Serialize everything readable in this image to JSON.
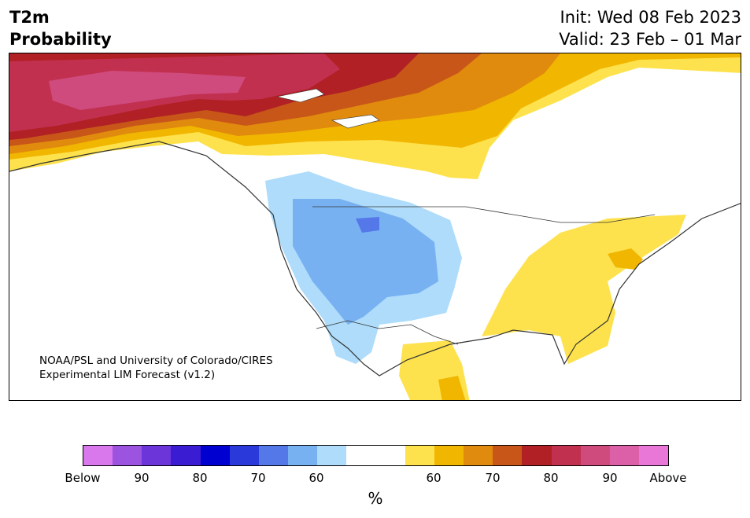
{
  "title": {
    "line1": "T2m",
    "line2": "Probability"
  },
  "dates": {
    "init": "Init: Wed 08 Feb 2023",
    "valid": "Valid: 23 Feb – 01 Mar"
  },
  "credit": {
    "line1": "NOAA/PSL and University of Colorado/CIRES",
    "line2": "Experimental LIM Forecast (v1.2)"
  },
  "colorbar": {
    "colors": [
      "#d977ec",
      "#9b53e0",
      "#6c35d9",
      "#3a1cd3",
      "#0000d0",
      "#2a39da",
      "#5478e8",
      "#78b1f2",
      "#aedcfa",
      "#ffffff",
      "#ffffff",
      "#fde24d",
      "#f1b600",
      "#e08b0d",
      "#c85619",
      "#b02024",
      "#c2304f",
      "#cf4a7d",
      "#db60a8",
      "#e877d8"
    ],
    "tick_labels": [
      "Below",
      "90",
      "80",
      "70",
      "60",
      "60",
      "70",
      "80",
      "90",
      "Above"
    ],
    "unit": "%"
  },
  "legend_colors": {
    "below_light": "#aedcfa",
    "below_mid": "#78b1f2",
    "below_strong": "#5478e8",
    "above_light": "#fde24d",
    "above_mid": "#f1b600",
    "above_orange": "#e08b0d",
    "above_deep": "#c85619",
    "above_red": "#b02024",
    "above_crimson": "#c2304f",
    "above_pink": "#cf4a7d"
  }
}
